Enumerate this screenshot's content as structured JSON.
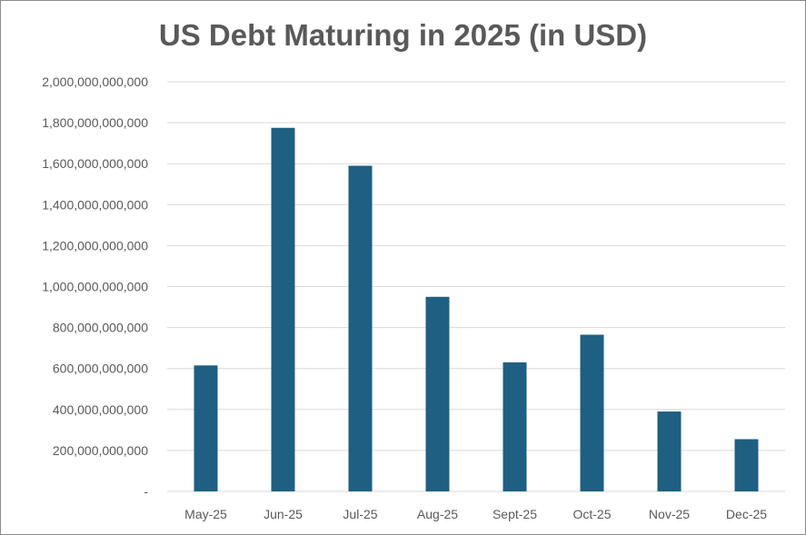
{
  "chart_data": {
    "type": "bar",
    "title": "US Debt Maturing in 2025 (in USD)",
    "categories": [
      "May-25",
      "Jun-25",
      "Jul-25",
      "Aug-25",
      "Sept-25",
      "Oct-25",
      "Nov-25",
      "Dec-25"
    ],
    "values": [
      615000000000,
      1775000000000,
      1590000000000,
      950000000000,
      630000000000,
      765000000000,
      390000000000,
      255000000000
    ],
    "ylim": [
      0,
      2000000000000
    ],
    "yticks": [
      0,
      200000000000,
      400000000000,
      600000000000,
      800000000000,
      1000000000000,
      1200000000000,
      1400000000000,
      1600000000000,
      1800000000000,
      2000000000000
    ],
    "ytick_labels": [
      "-",
      "200,000,000,000",
      "400,000,000,000",
      "600,000,000,000",
      "800,000,000,000",
      "1,000,000,000,000",
      "1,200,000,000,000",
      "1,400,000,000,000",
      "1,600,000,000,000",
      "1,800,000,000,000",
      "2,000,000,000,000"
    ],
    "grid": true,
    "legend": "none",
    "bar_color": "#1f5f82",
    "grid_color": "#d9d9d9",
    "text_color": "#595959"
  }
}
